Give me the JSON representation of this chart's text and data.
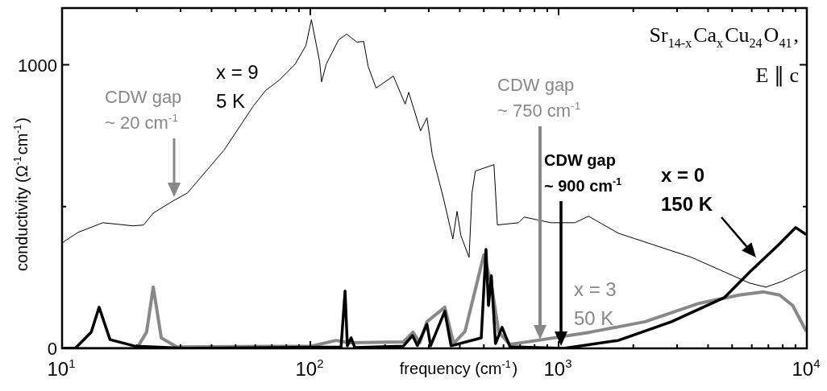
{
  "chart_data": {
    "type": "line",
    "xlabel": "frequency (cm$^{-1}$)",
    "ylabel": "conductivity (Ω$^{-1}$cm$^{-1}$)",
    "log": "x",
    "grid": false,
    "legend": false,
    "xlim": [
      10,
      10000
    ],
    "ylim": [
      0,
      1200
    ],
    "xticks": [
      {
        "value": 10,
        "label": "10$^{1}$"
      },
      {
        "value": 20,
        "label": null
      },
      {
        "value": 30,
        "label": null
      },
      {
        "value": 40,
        "label": null
      },
      {
        "value": 50,
        "label": null
      },
      {
        "value": 60,
        "label": null
      },
      {
        "value": 70,
        "label": null
      },
      {
        "value": 80,
        "label": null
      },
      {
        "value": 90,
        "label": null
      },
      {
        "value": 100,
        "label": "10$^{2}$"
      },
      {
        "value": 200,
        "label": null
      },
      {
        "value": 300,
        "label": null
      },
      {
        "value": 400,
        "label": null
      },
      {
        "value": 500,
        "label": null
      },
      {
        "value": 600,
        "label": null
      },
      {
        "value": 700,
        "label": null
      },
      {
        "value": 800,
        "label": null
      },
      {
        "value": 900,
        "label": null
      },
      {
        "value": 1000,
        "label": "10$^{3}$"
      },
      {
        "value": 2000,
        "label": null
      },
      {
        "value": 3000,
        "label": null
      },
      {
        "value": 4000,
        "label": null
      },
      {
        "value": 5000,
        "label": null
      },
      {
        "value": 6000,
        "label": null
      },
      {
        "value": 7000,
        "label": null
      },
      {
        "value": 8000,
        "label": null
      },
      {
        "value": 9000,
        "label": null
      },
      {
        "value": 10000,
        "label": "10$^{4}$"
      }
    ],
    "yticks": [
      0,
      {
        "value": 500,
        "label": null
      },
      1000
    ],
    "series": [
      {
        "name": "x = 9\n5 K",
        "color": "#000000",
        "x": [
          10,
          11.6,
          14.6,
          19.3,
          21.3,
          23.3,
          28,
          32,
          45,
          59,
          66,
          75,
          87,
          96,
          101,
          109,
          111,
          116,
          130,
          140,
          154,
          164,
          171,
          184,
          216,
          241,
          249,
          278,
          295,
          310,
          344,
          375,
          390,
          404,
          436,
          448,
          462,
          549,
          567,
          690,
          727,
          930,
          1163,
          1320,
          1740,
          3430,
          5890,
          6840,
          7950,
          9950
        ],
        "values": [
          372,
          409,
          443,
          432,
          435,
          477,
          520,
          548,
          700,
          855,
          909,
          946,
          1003,
          1068,
          1159,
          1011,
          940,
          1003,
          1088,
          1108,
          1080,
          1082,
          994,
          918,
          960,
          861,
          903,
          767,
          813,
          682,
          528,
          386,
          483,
          398,
          321,
          548,
          625,
          648,
          435,
          443,
          463,
          443,
          443,
          466,
          406,
          321,
          230,
          216,
          236,
          278
        ]
      },
      {
        "name": "x = 3\n50 K",
        "color": "#888888",
        "x": [
          10,
          20,
          21.9,
          23.3,
          25.1,
          29,
          101,
          127,
          144,
          237,
          259,
          276,
          295,
          348,
          378,
          420,
          500,
          536,
          574,
          637,
          820,
          1340,
          2230,
          3690,
          5340,
          6690,
          7770,
          8770,
          9950
        ],
        "values": [
          0,
          0,
          57,
          216,
          37,
          5,
          8,
          28,
          20,
          23,
          57,
          20,
          94,
          145,
          17,
          60,
          330,
          227,
          57,
          14,
          28,
          57,
          94,
          159,
          188,
          199,
          188,
          151,
          60
        ]
      },
      {
        "name": "x = 0\n150 K",
        "color": "#000000",
        "x": [
          10,
          11.3,
          13.1,
          14.1,
          15.6,
          19.6,
          32,
          133,
          138,
          141,
          146,
          151,
          237,
          258,
          270,
          295,
          305,
          348,
          369,
          488,
          510,
          522,
          536,
          557,
          592,
          637,
          1050,
          1740,
          2850,
          4650,
          5950,
          7770,
          9020,
          9950
        ],
        "values": [
          0,
          0,
          57,
          145,
          31,
          8,
          0,
          5,
          202,
          9,
          37,
          3,
          8,
          45,
          10,
          85,
          9,
          131,
          9,
          37,
          349,
          151,
          256,
          17,
          74,
          6,
          0,
          28,
          94,
          179,
          273,
          369,
          426,
          401
        ]
      }
    ],
    "annotations": [
      "Sr$_{14-x}$Ca$_{x}$Cu$_{24}$O$_{41}$,",
      "E ∥ c",
      "CDW gap\n~ 20 cm$^{-1}$",
      "CDW gap\n~ 750 cm$^{-1}$",
      "CDW gap\n~ 900 cm$^{-1}$"
    ]
  }
}
